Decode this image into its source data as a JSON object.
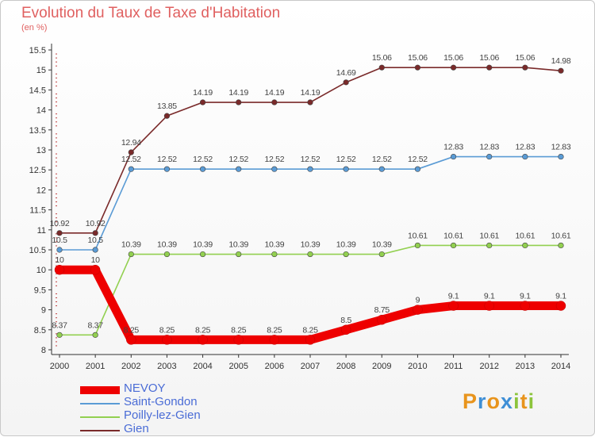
{
  "header": {
    "title": "Evolution du Taux de Taxe d'Habitation",
    "unit": "(en %)"
  },
  "logo": {
    "text": "Proxiti",
    "letters": [
      {
        "char": "P",
        "color": "#e8941c"
      },
      {
        "char": "r",
        "color": "#3f8fd6"
      },
      {
        "char": "o",
        "color": "#e8941c"
      },
      {
        "char": "x",
        "color": "#3f8fd6"
      },
      {
        "char": "i",
        "color": "#8cc43c"
      },
      {
        "char": "t",
        "color": "#e8941c"
      },
      {
        "char": "i",
        "color": "#8cc43c"
      }
    ]
  },
  "chart_data": {
    "type": "line",
    "x": [
      "2000",
      "2001",
      "2002",
      "2003",
      "2004",
      "2005",
      "2006",
      "2007",
      "2008",
      "2009",
      "2010",
      "2011",
      "2012",
      "2013",
      "2014"
    ],
    "ylim": [
      8,
      15.5
    ],
    "yticks": [
      "8",
      "8.5",
      "9",
      "9.5",
      "10",
      "10.5",
      "11",
      "11.5",
      "12",
      "12.5",
      "13",
      "13.5",
      "14",
      "14.5",
      "15",
      "15.5"
    ],
    "grid": false,
    "legend_position": "bottom-left",
    "series": [
      {
        "name": "NEVOY",
        "color": "#ee0000",
        "width": "thick",
        "values": [
          10,
          10,
          8.25,
          8.25,
          8.25,
          8.25,
          8.25,
          8.25,
          8.5,
          8.75,
          9,
          9.1,
          9.1,
          9.1,
          9.1
        ],
        "labels": [
          "10",
          "10",
          "8.25",
          "8.25",
          "8.25",
          "8.25",
          "8.25",
          "8.25",
          "8.5",
          "8.75",
          "9",
          "9.1",
          "9.1",
          "9.1",
          "9.1"
        ]
      },
      {
        "name": "Saint-Gondon",
        "color": "#5a9bd5",
        "width": "thin",
        "values": [
          10.5,
          10.5,
          12.52,
          12.52,
          12.52,
          12.52,
          12.52,
          12.52,
          12.52,
          12.52,
          12.52,
          12.83,
          12.83,
          12.83,
          12.83
        ],
        "labels": [
          "10.5",
          "10.5",
          "12.52",
          "12.52",
          "12.52",
          "12.52",
          "12.52",
          "12.52",
          "12.52",
          "12.52",
          "12.52",
          "12.83",
          "12.83",
          "12.83",
          "12.83"
        ]
      },
      {
        "name": "Poilly-lez-Gien",
        "color": "#92d050",
        "width": "thin",
        "values": [
          8.37,
          8.37,
          10.39,
          10.39,
          10.39,
          10.39,
          10.39,
          10.39,
          10.39,
          10.39,
          10.61,
          10.61,
          10.61,
          10.61,
          10.61
        ],
        "labels": [
          "8.37",
          "8.37",
          "10.39",
          "10.39",
          "10.39",
          "10.39",
          "10.39",
          "10.39",
          "10.39",
          "10.39",
          "10.61",
          "10.61",
          "10.61",
          "10.61",
          "10.61"
        ]
      },
      {
        "name": "Gien",
        "color": "#7a2a2a",
        "width": "thin",
        "values": [
          10.92,
          10.92,
          12.94,
          13.85,
          14.19,
          14.19,
          14.19,
          14.19,
          14.69,
          15.06,
          15.06,
          15.06,
          15.06,
          15.06,
          14.98
        ],
        "labels": [
          "10.92",
          "10.92",
          "12.94",
          "13.85",
          "14.19",
          "14.19",
          "14.19",
          "14.19",
          "14.69",
          "15.06",
          "15.06",
          "15.06",
          "15.06",
          "15.06",
          "14.98"
        ]
      }
    ]
  }
}
